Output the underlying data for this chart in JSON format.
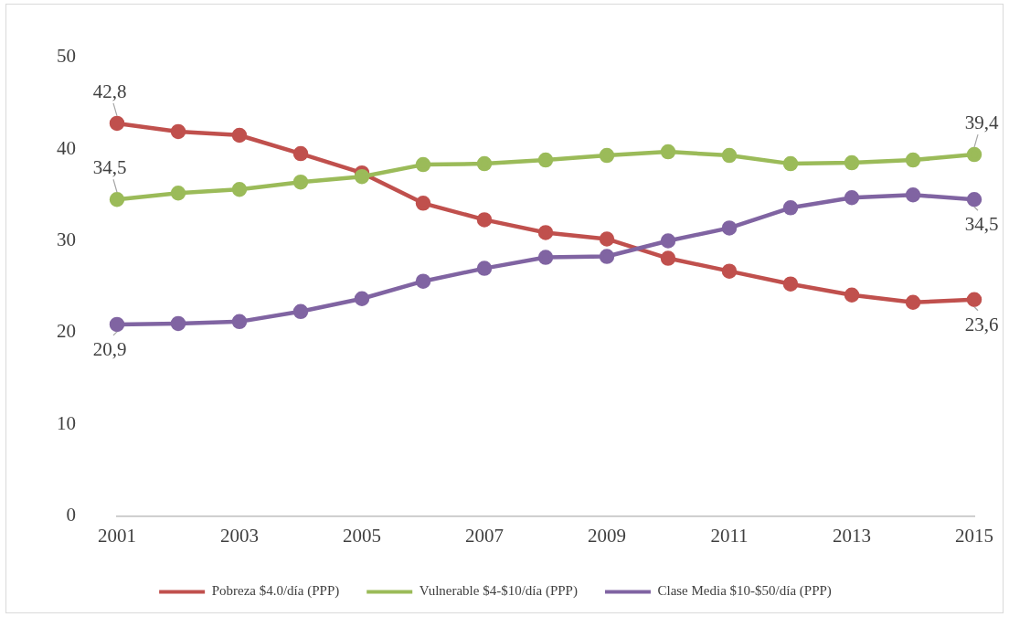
{
  "chart_data": {
    "type": "line",
    "categories": [
      "2001",
      null,
      "2003",
      null,
      "2005",
      null,
      "2007",
      null,
      "2009",
      null,
      "2011",
      null,
      "2013",
      null,
      "2015"
    ],
    "ylim": [
      0,
      50
    ],
    "yticks": [
      0,
      10,
      20,
      30,
      40,
      50
    ],
    "grid": false,
    "legend": "bottom",
    "marker": "circle",
    "line_style": "solid",
    "series": [
      {
        "name": "Pobreza $4.0/día (PPP)",
        "color": "#c0504d",
        "values": [
          42.8,
          41.9,
          41.5,
          39.5,
          37.4,
          34.1,
          32.3,
          30.9,
          30.2,
          28.1,
          26.7,
          25.3,
          24.1,
          23.3,
          23.6
        ],
        "value_labels": [
          "42,8",
          null,
          null,
          null,
          null,
          null,
          null,
          null,
          null,
          null,
          null,
          null,
          null,
          null,
          "23,6"
        ]
      },
      {
        "name": "Vulnerable $4-$10/día (PPP)",
        "color": "#9bbb59",
        "values": [
          34.5,
          35.2,
          35.6,
          36.4,
          37.0,
          38.3,
          38.4,
          38.8,
          39.3,
          39.7,
          39.3,
          38.4,
          38.5,
          38.8,
          39.4
        ],
        "value_labels": [
          "34,5",
          null,
          null,
          null,
          null,
          null,
          null,
          null,
          null,
          null,
          null,
          null,
          null,
          null,
          "39,4"
        ]
      },
      {
        "name": "Clase Media $10-$50/día (PPP)",
        "color": "#8064a2",
        "values": [
          20.9,
          21.0,
          21.2,
          22.3,
          23.7,
          25.6,
          27.0,
          28.2,
          28.3,
          30.0,
          31.4,
          33.6,
          34.7,
          35.0,
          34.5
        ],
        "value_labels": [
          "20,9",
          null,
          null,
          null,
          null,
          null,
          null,
          null,
          null,
          null,
          null,
          null,
          null,
          null,
          "34,5"
        ]
      }
    ]
  }
}
